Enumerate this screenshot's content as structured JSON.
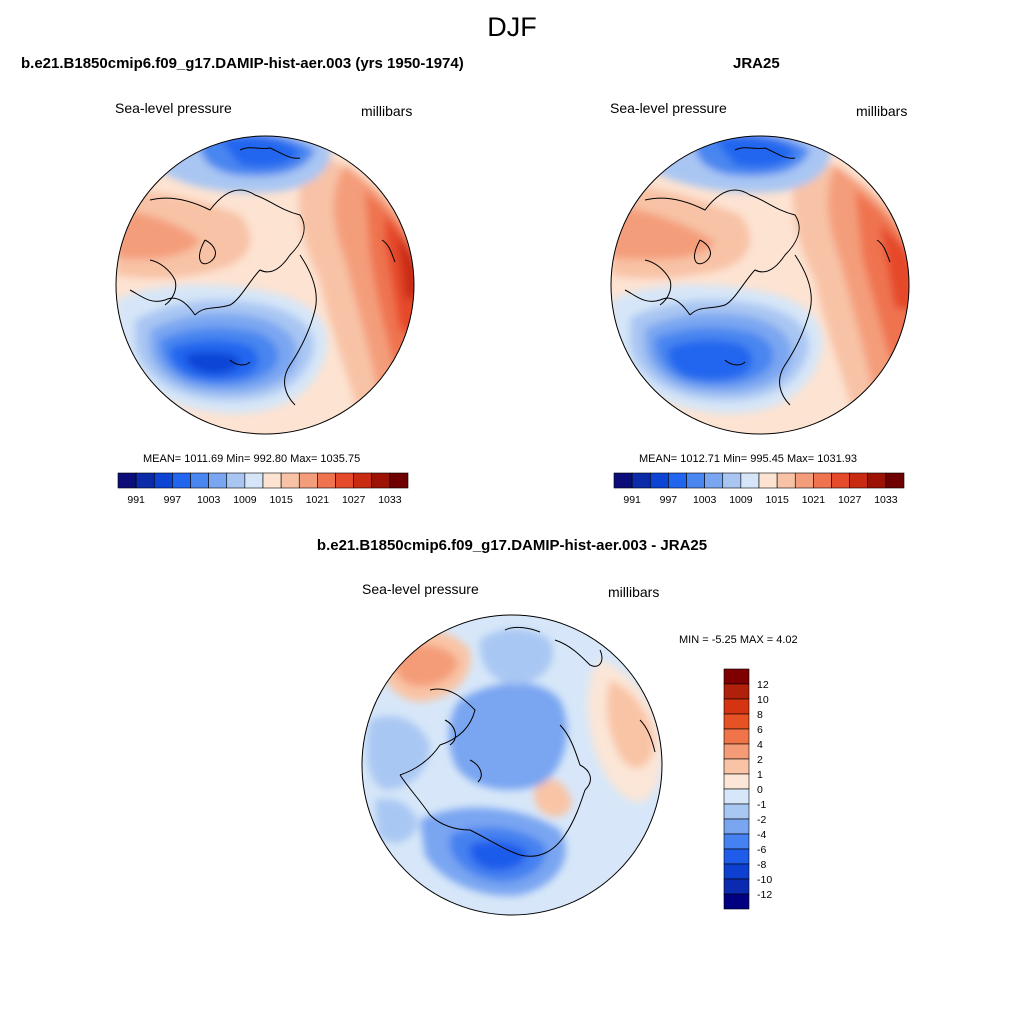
{
  "figure": {
    "title": "DJF"
  },
  "panels": [
    {
      "id": "model",
      "title": "b.e21.B1850cmip6.f09_g17.DAMIP-hist-aer.003 (yrs 1950-1974)",
      "left_label": "Sea-level pressure",
      "right_label": "millibars",
      "stats": "MEAN= 1011.69  Min= 992.80  Max= 1035.75"
    },
    {
      "id": "obs",
      "title": "JRA25",
      "left_label": "Sea-level pressure",
      "right_label": "millibars",
      "stats": "MEAN= 1012.71  Min= 995.45  Max= 1031.93"
    },
    {
      "id": "diff",
      "title": "b.e21.B1850cmip6.f09_g17.DAMIP-hist-aer.003 - JRA25",
      "left_label": "Sea-level pressure",
      "right_label": "millibars",
      "stats": "MIN =  -5.25 MAX =   4.02"
    }
  ],
  "colorbars": {
    "abs": {
      "colors": [
        "#0d0d7a",
        "#0c2ba8",
        "#0d44d6",
        "#2266ef",
        "#4a86f0",
        "#7aa6f1",
        "#a9c6f3",
        "#d6e6f8",
        "#fde3d2",
        "#f8c2a6",
        "#f49d7a",
        "#ef734f",
        "#e54a2a",
        "#c92a12",
        "#9c1306",
        "#6e0000"
      ],
      "ticks": [
        "991",
        "997",
        "1003",
        "1009",
        "1015",
        "1021",
        "1027",
        "1033"
      ]
    },
    "diff": {
      "colors": [
        "#000080",
        "#0b2ab2",
        "#0d3fd0",
        "#1f5cea",
        "#4581f0",
        "#79a5f1",
        "#a9c7f3",
        "#d7e7f9",
        "#fbe6d7",
        "#f9c4a6",
        "#f49c78",
        "#ef7449",
        "#e65223",
        "#d53412",
        "#b1200a",
        "#7f0000"
      ],
      "ticks": [
        "-12",
        "-10",
        "-8",
        "-6",
        "-4",
        "-2",
        "-1",
        "0",
        "1",
        "2",
        "4",
        "6",
        "8",
        "10",
        "12"
      ]
    }
  },
  "map_style": {
    "projection": "polar stereographic (North Pole)",
    "coastline_color": "#000000",
    "ocean_background": "#ffffff"
  }
}
